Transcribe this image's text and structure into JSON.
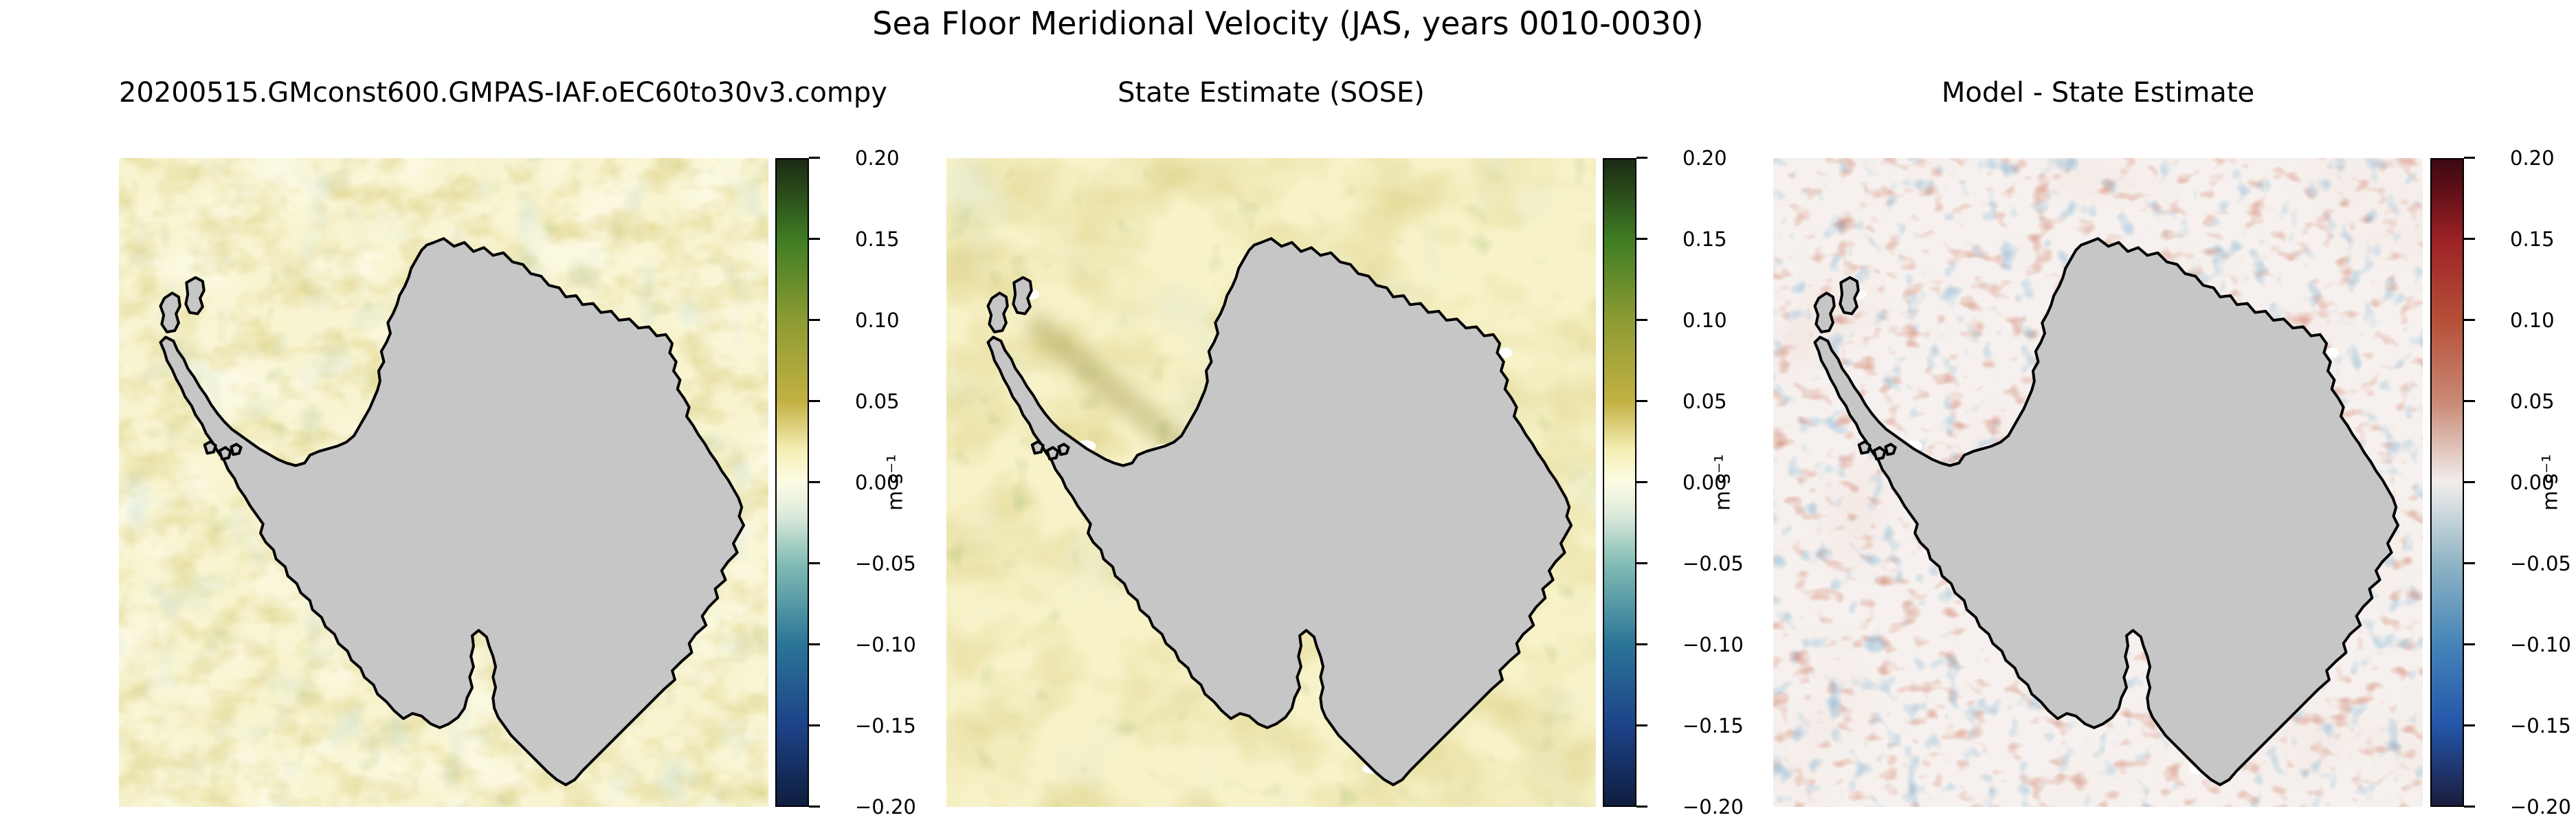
{
  "figure": {
    "title": "Sea Floor Meridional Velocity (JAS, years 0010-0030)",
    "background": "#ffffff"
  },
  "colors": {
    "continent": "#c6c6c6",
    "coastline": "#000000",
    "text": "#000000",
    "ocean_base_model": "#f8f4d0",
    "ocean_base_sose": "#f7f2c8",
    "ocean_base_diff": "#f6f1ee"
  },
  "colormaps": {
    "delta": [
      [
        "#0e1e3e",
        0
      ],
      [
        "#1d4389",
        12.5
      ],
      [
        "#2a7598",
        25
      ],
      [
        "#82bdb4",
        37.5
      ],
      [
        "#ddeadb",
        45
      ],
      [
        "#fcfce4",
        50
      ],
      [
        "#f5efb5",
        55
      ],
      [
        "#c3b143",
        62.5
      ],
      [
        "#8d9c33",
        75
      ],
      [
        "#3f7d23",
        87.5
      ],
      [
        "#1b2a14",
        100
      ]
    ],
    "balance": [
      [
        "#1b1c3d",
        0
      ],
      [
        "#2456aa",
        12.5
      ],
      [
        "#4684b9",
        25
      ],
      [
        "#8fb4c4",
        37.5
      ],
      [
        "#f1eeec",
        50
      ],
      [
        "#c98975",
        62.5
      ],
      [
        "#b65038",
        75
      ],
      [
        "#9c2226",
        87.5
      ],
      [
        "#5a0d16",
        96
      ],
      [
        "#3b0a12",
        100
      ]
    ]
  },
  "panels": [
    {
      "title": "20200515.GMconst600.GMPAS-IAF.oEC60to30v3.compy",
      "colormap": "delta",
      "colorbar": {
        "ticks": [
          "0.20",
          "0.15",
          "0.10",
          "0.05",
          "0.00",
          "−0.05",
          "−0.10",
          "−0.15",
          "−0.20"
        ],
        "unit": "m s⁻¹",
        "vmin": -0.2,
        "vmax": 0.2
      }
    },
    {
      "title": "State Estimate (SOSE)",
      "colormap": "delta",
      "colorbar": {
        "ticks": [
          "0.20",
          "0.15",
          "0.10",
          "0.05",
          "0.00",
          "−0.05",
          "−0.10",
          "−0.15",
          "−0.20"
        ],
        "unit": "m s⁻¹",
        "vmin": -0.2,
        "vmax": 0.2
      }
    },
    {
      "title": "Model - State Estimate",
      "colormap": "balance",
      "colorbar": {
        "ticks": [
          "0.20",
          "0.15",
          "0.10",
          "0.05",
          "0.00",
          "−0.05",
          "−0.10",
          "−0.15",
          "−0.20"
        ],
        "unit": "m s⁻¹",
        "vmin": -0.2,
        "vmax": 0.2
      }
    }
  ],
  "chart_data": [
    {
      "type": "heatmap",
      "title": "20200515.GMconst600.GMPAS-IAF.oEC60to30v3.compy",
      "suptitle": "Sea Floor Meridional Velocity (JAS, years 0010-0030)",
      "region": "Antarctica / Southern Ocean polar view with grey land mask",
      "units": "m s⁻¹",
      "vmin": -0.2,
      "vmax": 0.2,
      "colorbar_ticks": [
        0.2,
        0.15,
        0.1,
        0.05,
        0.0,
        -0.05,
        -0.1,
        -0.15,
        -0.2
      ],
      "colormap": "cmocean delta (navy-teal-cream-olive-green)",
      "field_character": "mostly weak positive values (pale yellow), small mottled anomalies near coast"
    },
    {
      "type": "heatmap",
      "title": "State Estimate (SOSE)",
      "suptitle": "Sea Floor Meridional Velocity (JAS, years 0010-0030)",
      "region": "Antarctica / Southern Ocean polar view with grey land mask",
      "units": "m s⁻¹",
      "vmin": -0.2,
      "vmax": 0.2,
      "colorbar_ticks": [
        0.2,
        0.15,
        0.1,
        0.05,
        0.0,
        -0.05,
        -0.1,
        -0.15,
        -0.2
      ],
      "colormap": "cmocean delta (navy-teal-cream-olive-green)",
      "field_character": "weak positive values with broader smooth yellow/olive features, olive streak near Antarctic Peninsula, white gaps where mask differs"
    },
    {
      "type": "heatmap",
      "title": "Model - State Estimate",
      "suptitle": "Sea Floor Meridional Velocity (JAS, years 0010-0030)",
      "region": "Antarctica / Southern Ocean polar view with grey land mask",
      "units": "m s⁻¹",
      "vmin": -0.2,
      "vmax": 0.2,
      "colorbar_ticks": [
        0.2,
        0.15,
        0.1,
        0.05,
        0.0,
        -0.05,
        -0.1,
        -0.15,
        -0.2
      ],
      "colormap": "cmocean balance (navy-blue-white-red-maroon)",
      "field_character": "near-zero (white) difference field with small scattered red and blue streaks, denser west of the peninsula and along the coast"
    }
  ]
}
